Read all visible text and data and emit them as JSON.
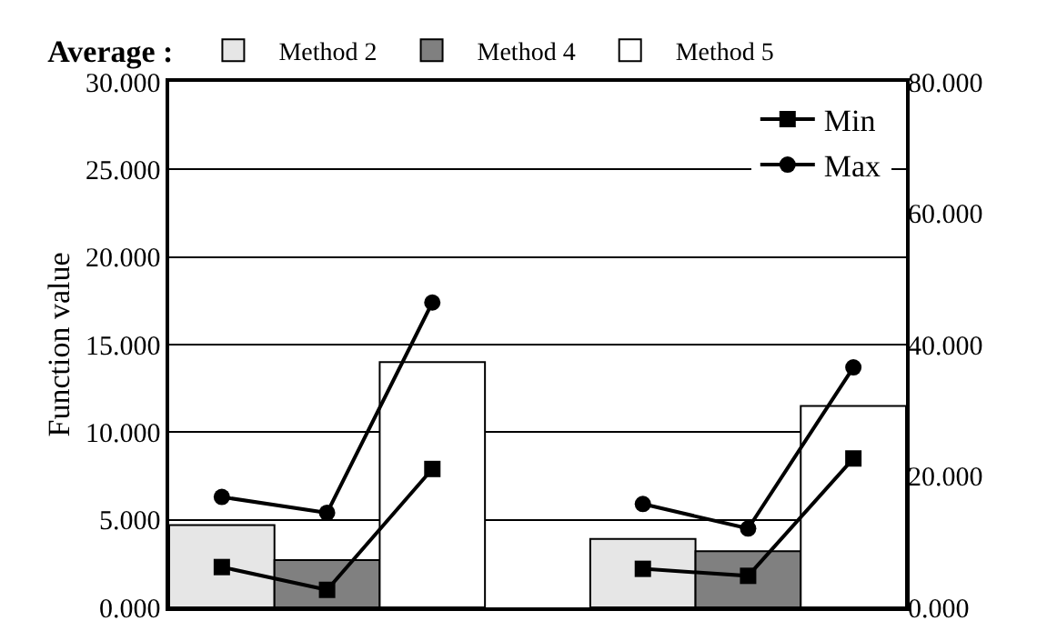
{
  "chart_data": {
    "type": "bar",
    "ylabel": "Function value",
    "legend_title": "Average :",
    "categories": [
      null,
      null,
      null,
      null,
      null,
      null,
      null
    ],
    "series": [
      {
        "name": "Method 2",
        "color": "#e6e6e6",
        "values": [
          4.7,
          null,
          null,
          null,
          3.9,
          null,
          null
        ]
      },
      {
        "name": "Method 4",
        "color": "#808080",
        "values": [
          null,
          2.7,
          null,
          null,
          null,
          3.2,
          null
        ]
      },
      {
        "name": "Method 5",
        "color": "#ffffff",
        "values": [
          null,
          null,
          14.0,
          null,
          null,
          null,
          11.5
        ]
      },
      {
        "name": "Min",
        "type": "line",
        "color": "#000000",
        "marker": "square",
        "values": [
          2.3,
          1.0,
          7.9,
          null,
          2.2,
          1.8,
          8.5
        ]
      },
      {
        "name": "Max",
        "type": "line",
        "color": "#000000",
        "marker": "circle",
        "values": [
          6.3,
          5.4,
          17.4,
          null,
          5.9,
          4.5,
          13.7
        ]
      }
    ],
    "ylim": [
      0,
      30
    ],
    "yticks": [
      {
        "value": 0,
        "label": "0.000"
      },
      {
        "value": 5,
        "label": "5.000"
      },
      {
        "value": 10,
        "label": "10.000"
      },
      {
        "value": 15,
        "label": "15.000"
      },
      {
        "value": 20,
        "label": "20.000"
      },
      {
        "value": 25,
        "label": "25.000"
      },
      {
        "value": 30,
        "label": "30.000"
      }
    ],
    "y2lim": [
      0,
      80
    ],
    "y2ticks": [
      {
        "value": 0,
        "label": "0.000"
      },
      {
        "value": 20,
        "label": "20.000"
      },
      {
        "value": 40,
        "label": "40.000"
      },
      {
        "value": 60,
        "label": "60.000"
      },
      {
        "value": 80,
        "label": "80.000"
      }
    ],
    "grid": "y",
    "legend": "top",
    "tick_labels": "y"
  }
}
